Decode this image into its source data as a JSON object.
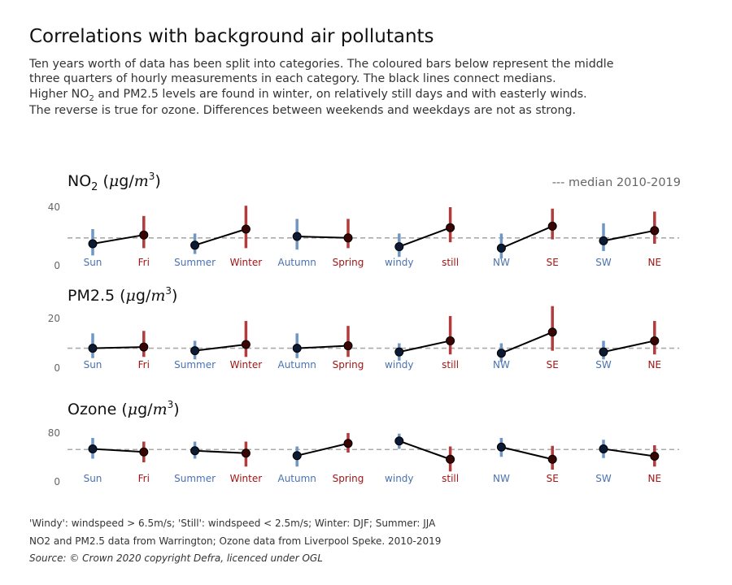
{
  "header": {
    "title": "Correlations with background air pollutants",
    "intro_line1": "Ten years worth of data has been split into categories. The coloured bars below represent the middle",
    "intro_line2": "three quarters of hourly measurements in each category. The black lines connect medians.",
    "intro_line3_a": "Higher NO",
    "intro_line3_sub": "2",
    "intro_line3_b": " and PM2.5 levels are found in winter, on relatively still days and with easterly winds.",
    "intro_line4": "The reverse is true for ozone. Differences between weekends and weekdays are not as strong."
  },
  "legend_note": "--- median 2010-2019",
  "footer": {
    "note1": "'Windy': windspeed > 6.5m/s; 'Still': windspeed < 2.5m/s; Winter: DJF; Summer: JJA",
    "note2": "NO2 and PM2.5 data from Warrington; Ozone data from Liverpool Speke. 2010-2019",
    "source": "Source: © Crown 2020 copyright Defra,  licenced under OGL"
  },
  "colors": {
    "low": "#6f97c6",
    "high": "#b23b3b",
    "low_text": "#4a72b0",
    "high_text": "#a11515",
    "median_line": "#aaaaaa",
    "connector": "#000000"
  },
  "chart_data": [
    {
      "type": "line",
      "title": "NO2 (μg/m3)",
      "title_parts": {
        "name": "NO",
        "sub": "2",
        "unit_open": " (",
        "unit_mu": "μ",
        "unit_g": "g/",
        "unit_m": "m",
        "unit_sup": "3",
        "unit_close": ")"
      },
      "categories": [
        "Sun",
        "Fri",
        "Summer",
        "Winter",
        "Autumn",
        "Spring",
        "windy",
        "still",
        "NW",
        "SE",
        "SW",
        "NE"
      ],
      "category_groups": [
        "low",
        "high",
        "low",
        "high",
        "low",
        "high",
        "low",
        "high",
        "low",
        "high",
        "low",
        "high"
      ],
      "medians": [
        15,
        21,
        14,
        25,
        20,
        19,
        13,
        26,
        12,
        27,
        17,
        24
      ],
      "range_low": [
        7,
        12,
        8,
        12,
        11,
        12,
        6,
        16,
        5,
        18,
        10,
        15
      ],
      "range_high": [
        25,
        34,
        22,
        41,
        32,
        32,
        22,
        40,
        22,
        39,
        29,
        37
      ],
      "overall_median": 19,
      "ylim": [
        0,
        40
      ],
      "yticks": [
        0,
        40
      ],
      "grid": false
    },
    {
      "type": "line",
      "title": "PM2.5 (μg/m3)",
      "title_parts": {
        "name": "PM2.5",
        "sub": "",
        "unit_open": " (",
        "unit_mu": "μ",
        "unit_g": "g/",
        "unit_m": "m",
        "unit_sup": "3",
        "unit_close": ")"
      },
      "categories": [
        "Sun",
        "Fri",
        "Summer",
        "Winter",
        "Autumn",
        "Spring",
        "windy",
        "still",
        "NW",
        "SE",
        "SW",
        "NE"
      ],
      "category_groups": [
        "low",
        "high",
        "low",
        "high",
        "low",
        "high",
        "low",
        "high",
        "low",
        "high",
        "low",
        "high"
      ],
      "medians": [
        8,
        8.5,
        7,
        9.5,
        8,
        9,
        6.5,
        11,
        6,
        14.5,
        6.5,
        11
      ],
      "range_low": [
        4,
        4.5,
        3.5,
        4.5,
        4,
        4.5,
        3,
        5.5,
        2.5,
        7,
        3.5,
        5.5
      ],
      "range_high": [
        14,
        15,
        11,
        19,
        14,
        17,
        10,
        21,
        10,
        25,
        11,
        19
      ],
      "overall_median": 8,
      "ylim": [
        0,
        20
      ],
      "yticks": [
        0,
        20
      ],
      "grid": false
    },
    {
      "type": "line",
      "title": "Ozone (μg/m3)",
      "title_parts": {
        "name": "Ozone",
        "sub": "",
        "unit_open": " (",
        "unit_mu": "μ",
        "unit_g": "g/",
        "unit_m": "m",
        "unit_sup": "3",
        "unit_close": ")"
      },
      "categories": [
        "Sun",
        "Fri",
        "Summer",
        "Winter",
        "Autumn",
        "Spring",
        "windy",
        "still",
        "NW",
        "SE",
        "SW",
        "NE"
      ],
      "category_groups": [
        "low",
        "high",
        "low",
        "high",
        "low",
        "high",
        "low",
        "high",
        "low",
        "high",
        "low",
        "high"
      ],
      "medians": [
        54,
        49,
        51,
        47,
        43,
        63,
        67,
        37,
        57,
        37,
        54,
        42
      ],
      "range_low": [
        38,
        32,
        38,
        25,
        25,
        48,
        54,
        17,
        41,
        20,
        39,
        25
      ],
      "range_high": [
        72,
        66,
        66,
        66,
        58,
        80,
        79,
        58,
        72,
        59,
        69,
        60
      ],
      "overall_median": 53,
      "ylim": [
        0,
        80
      ],
      "yticks": [
        0,
        80
      ],
      "grid": false
    }
  ]
}
